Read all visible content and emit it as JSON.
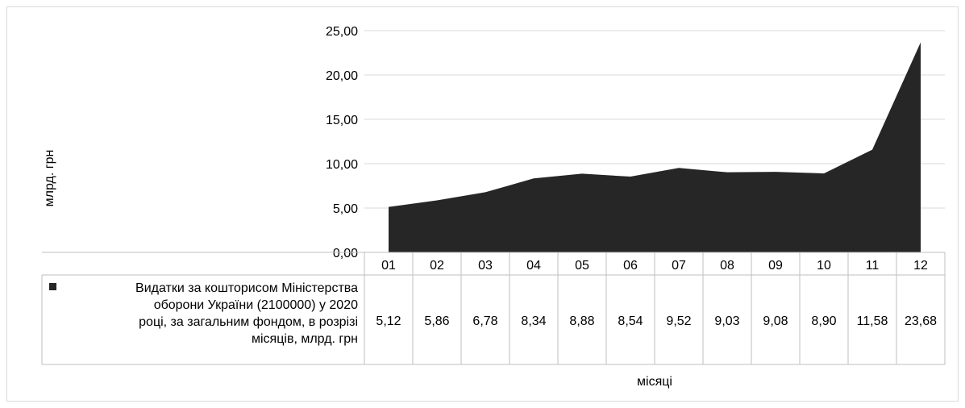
{
  "chart_data": {
    "type": "area",
    "title": "",
    "xlabel": "місяці",
    "ylabel": "млрд. грн",
    "ylim": [
      0,
      25
    ],
    "y_ticks": [
      "0,00",
      "5,00",
      "10,00",
      "15,00",
      "20,00",
      "25,00"
    ],
    "categories": [
      "01",
      "02",
      "03",
      "04",
      "05",
      "06",
      "07",
      "08",
      "09",
      "10",
      "11",
      "12"
    ],
    "series": [
      {
        "name": "Видатки за кошторисом Міністерства оборони України (2100000) у 2020 році, за загальним фондом, в розрізі місяців, млрд. грн",
        "name_lines": [
          "Видатки за кошторисом Міністерства",
          "оборони України (2100000) у 2020",
          "році, за загальним фондом, в розрізі",
          "місяців, млрд. грн"
        ],
        "values": [
          5.12,
          5.86,
          6.78,
          8.34,
          8.88,
          8.54,
          9.52,
          9.03,
          9.08,
          8.9,
          11.58,
          23.68
        ],
        "value_labels": [
          "5,12",
          "5,86",
          "6,78",
          "8,34",
          "8,88",
          "8,54",
          "9,52",
          "9,03",
          "9,08",
          "8,90",
          "11,58",
          "23,68"
        ],
        "color": "#262626"
      }
    ],
    "grid": true,
    "data_table": true
  }
}
